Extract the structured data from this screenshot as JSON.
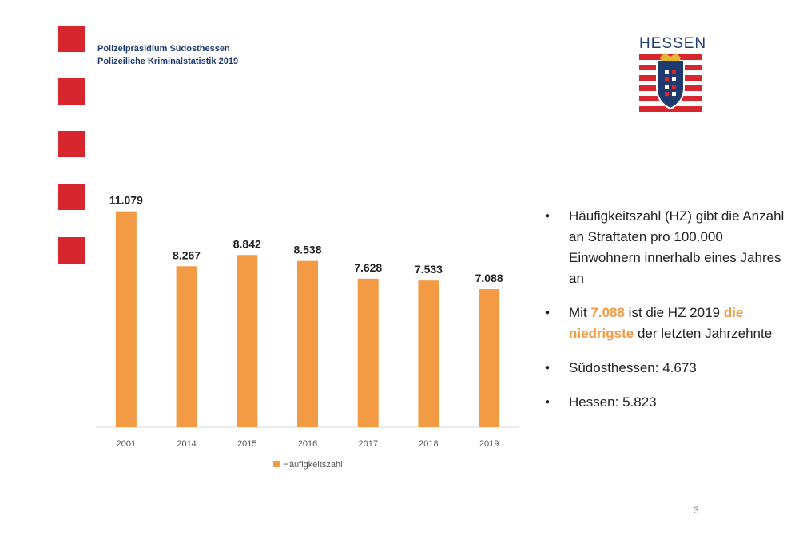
{
  "header": {
    "line1": "Polizeipräsidium Südosthessen",
    "line2": "Polizeiliche Kriminalstatistik 2019"
  },
  "logo": {
    "text": "HESSEN",
    "colors": {
      "red": "#d7262e",
      "blue": "#1f3b6e"
    }
  },
  "colors": {
    "accent": "#f29a44",
    "square": "#d7262e"
  },
  "chart_data": {
    "type": "bar",
    "categories": [
      "2001",
      "2014",
      "2015",
      "2016",
      "2017",
      "2018",
      "2019"
    ],
    "series": [
      {
        "name": "Häufigkeitszahl",
        "values": [
          11079,
          8267,
          8842,
          8538,
          7628,
          7533,
          7088
        ],
        "color": "#f29a44"
      }
    ],
    "value_labels": [
      "11.079",
      "8.267",
      "8.842",
      "8.538",
      "7.628",
      "7.533",
      "7.088"
    ],
    "title": "",
    "xlabel": "",
    "ylabel": "",
    "ylim": [
      0,
      12500
    ],
    "grid": false,
    "legend": "bottom-center"
  },
  "bullets": [
    {
      "text": "Häufigkeitszahl (HZ) gibt die Anzahl an Straftaten pro 100.000 Einwohnern innerhalb eines Jahres an"
    },
    {
      "pre": "Mit ",
      "num": "7.088",
      "mid": " ist die HZ 2019 ",
      "highlight": "die niedrigste",
      "post": " der letzten Jahrzehnte"
    },
    {
      "text": "Südosthessen: 4.673"
    },
    {
      "text": "Hessen: 5.823"
    }
  ],
  "bullet_char": "•",
  "page_number": "3"
}
